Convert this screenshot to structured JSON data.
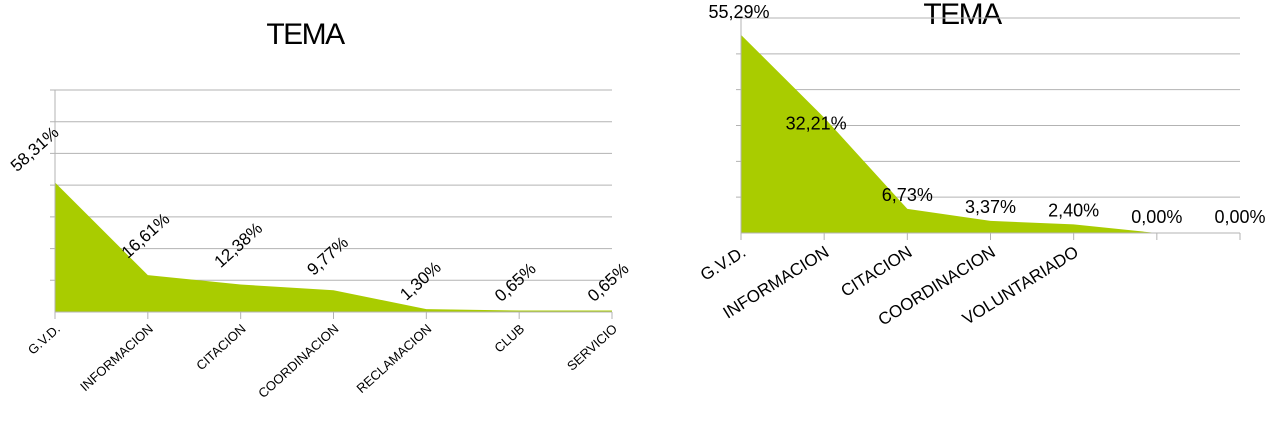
{
  "chart_data": [
    {
      "type": "area",
      "title": "TEMA",
      "categories": [
        "G.V.D.",
        "INFORMACION",
        "CITACION",
        "COORDINACION",
        "RECLAMACION",
        "CLUB",
        "SERVICIO"
      ],
      "series": [
        {
          "values": [
            58.31,
            16.61,
            12.38,
            9.77,
            1.3,
            0.65,
            0.65
          ]
        }
      ],
      "data_labels": [
        "58,31%",
        "16,61%",
        "12,38%",
        "9,77%",
        "1,30%",
        "0,65%",
        "0,65%"
      ],
      "ylim": [
        0,
        100
      ],
      "grid": true,
      "color": "#a9cc00"
    },
    {
      "type": "area",
      "title": "TEMA",
      "categories": [
        "G.V.D.",
        "INFORMACION",
        "CITACION",
        "COORDINACION",
        "VOLUNTARIADO",
        "",
        ""
      ],
      "series": [
        {
          "values": [
            55.29,
            32.21,
            6.73,
            3.37,
            2.4,
            0.0,
            0.0
          ]
        }
      ],
      "data_labels": [
        "55,29%",
        "32,21%",
        "6,73%",
        "3,37%",
        "2,40%",
        "0,00%",
        "0,00%"
      ],
      "ylim": [
        0,
        60
      ],
      "grid": true,
      "color": "#a9cc00"
    }
  ]
}
